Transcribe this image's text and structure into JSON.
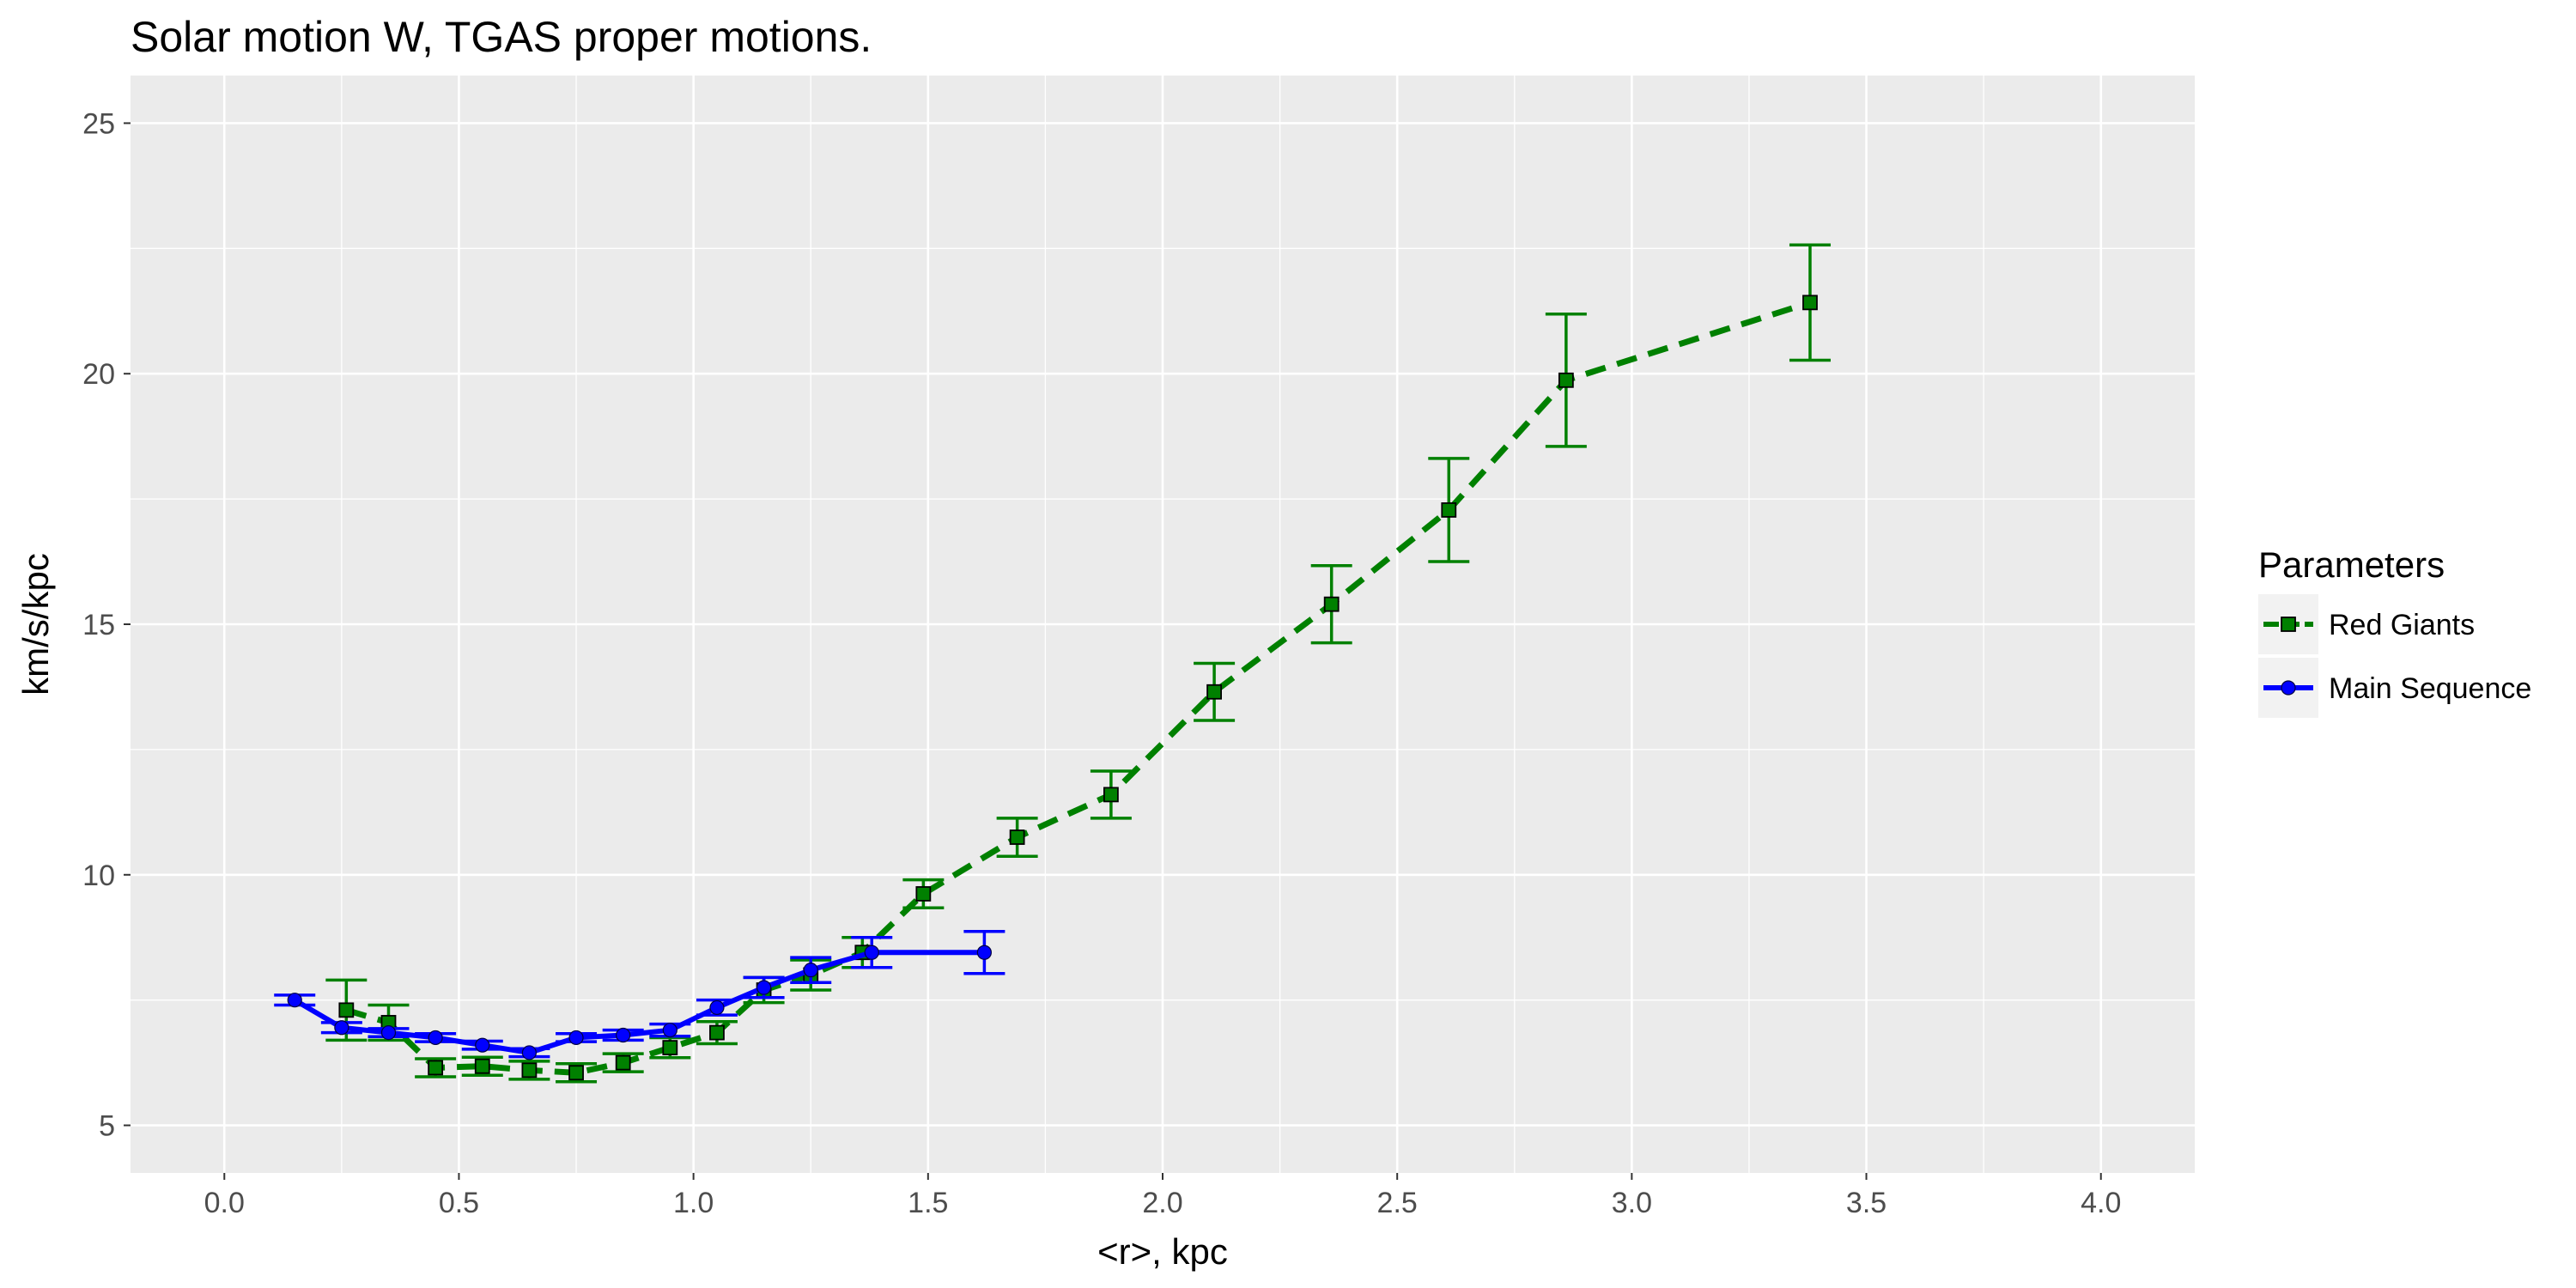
{
  "chart_data": {
    "type": "line",
    "title": "Solar motion W,  TGAS  proper motions.",
    "xlabel": "<r>, kpc",
    "ylabel": "km/s/kpc",
    "xlim": [
      -0.2,
      4.2
    ],
    "ylim": [
      4.05,
      25.95
    ],
    "x_ticks": [
      0.0,
      0.5,
      1.0,
      1.5,
      2.0,
      2.5,
      3.0,
      3.5,
      4.0
    ],
    "x_tick_labels": [
      "0.0",
      "0.5",
      "1.0",
      "1.5",
      "2.0",
      "2.5",
      "3.0",
      "3.5",
      "4.0"
    ],
    "y_ticks": [
      5,
      10,
      15,
      20,
      25
    ],
    "y_tick_labels": [
      "5",
      "10",
      "15",
      "20",
      "25"
    ],
    "grid": true,
    "legend": {
      "title": "Parameters",
      "position": "right"
    },
    "series": [
      {
        "name": "Red Giants",
        "color": "#008000",
        "line_style": "dashed",
        "marker": "square",
        "x": [
          0.26,
          0.35,
          0.45,
          0.55,
          0.65,
          0.75,
          0.85,
          0.95,
          1.05,
          1.15,
          1.25,
          1.36,
          1.49,
          1.69,
          1.89,
          2.11,
          2.36,
          2.61,
          2.86,
          3.38
        ],
        "y": [
          7.3,
          7.05,
          6.15,
          6.18,
          6.1,
          6.05,
          6.25,
          6.55,
          6.85,
          7.7,
          8.0,
          8.45,
          9.62,
          10.75,
          11.6,
          13.65,
          15.4,
          17.28,
          19.87,
          21.42
        ],
        "error": [
          0.6,
          0.35,
          0.18,
          0.18,
          0.18,
          0.18,
          0.18,
          0.2,
          0.22,
          0.25,
          0.3,
          0.3,
          0.28,
          0.38,
          0.47,
          0.57,
          0.77,
          1.03,
          1.32,
          1.15
        ]
      },
      {
        "name": "Main Sequence",
        "color": "#0000FF",
        "line_style": "solid",
        "marker": "circle",
        "x": [
          0.15,
          0.25,
          0.35,
          0.45,
          0.55,
          0.65,
          0.75,
          0.85,
          0.95,
          1.05,
          1.15,
          1.25,
          1.38,
          1.62
        ],
        "y": [
          7.5,
          6.95,
          6.85,
          6.75,
          6.6,
          6.45,
          6.75,
          6.8,
          6.9,
          7.35,
          7.75,
          8.1,
          8.45,
          8.45
        ],
        "error": [
          0.1,
          0.1,
          0.08,
          0.08,
          0.08,
          0.08,
          0.08,
          0.1,
          0.12,
          0.15,
          0.2,
          0.25,
          0.3,
          0.42
        ]
      }
    ]
  }
}
